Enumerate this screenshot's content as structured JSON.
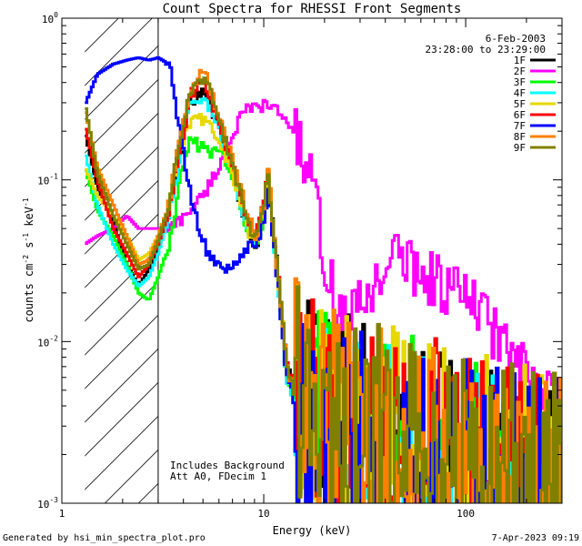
{
  "chart_data": {
    "type": "line",
    "title": "Count Spectra for RHESSI Front Segments",
    "xlabel": "Energy (keV)",
    "ylabel_base": "counts cm",
    "ylabel_sup1": "-2",
    "ylabel_mid": " s",
    "ylabel_sup2": "-1",
    "ylabel_mid2": " keV",
    "ylabel_sup3": "-1",
    "x_scale": "log",
    "y_scale": "log",
    "xlim": [
      1,
      300
    ],
    "ylim": [
      0.001,
      1
    ],
    "x_ticks": [
      {
        "value": 1,
        "label": "1"
      },
      {
        "value": 10,
        "label": "10"
      },
      {
        "value": 100,
        "label": "100"
      }
    ],
    "y_ticks": [
      {
        "value": 1,
        "base": "10",
        "exp": "0"
      },
      {
        "value": 0.1,
        "base": "10",
        "exp": "-1"
      },
      {
        "value": 0.01,
        "base": "10",
        "exp": "-2"
      },
      {
        "value": 0.001,
        "base": "10",
        "exp": "-3"
      }
    ],
    "hatched_region_kev": [
      1.3,
      3
    ],
    "legend_position": "top-right",
    "date": "6-Feb-2003",
    "time_range": "23:28:00 to 23:29:00",
    "annotations": [
      "Includes Background",
      "Att A0, FDecim 1"
    ],
    "series": [
      {
        "name": "1F",
        "color": "#000000",
        "points": [
          [
            1.3,
            0.2
          ],
          [
            1.5,
            0.09
          ],
          [
            1.8,
            0.055
          ],
          [
            2.1,
            0.03
          ],
          [
            2.4,
            0.022
          ],
          [
            2.7,
            0.028
          ],
          [
            3.0,
            0.038
          ],
          [
            3.4,
            0.06
          ],
          [
            3.8,
            0.13
          ],
          [
            4.3,
            0.3
          ],
          [
            4.8,
            0.35
          ],
          [
            5.3,
            0.33
          ],
          [
            6.0,
            0.2
          ],
          [
            6.8,
            0.14
          ],
          [
            7.5,
            0.08
          ],
          [
            8.3,
            0.05
          ],
          [
            9.2,
            0.04
          ],
          [
            10.0,
            0.06
          ],
          [
            10.5,
            0.11
          ],
          [
            11.0,
            0.06
          ],
          [
            12.0,
            0.02
          ],
          [
            13.0,
            0.007
          ],
          [
            15.0,
            0.004
          ],
          [
            20.0,
            0.003
          ],
          [
            30.0,
            0.0025
          ],
          [
            50.0,
            0.002
          ],
          [
            80.0,
            0.0017
          ],
          [
            120.0,
            0.0015
          ],
          [
            200.0,
            0.0013
          ],
          [
            300.0,
            0.0012
          ]
        ]
      },
      {
        "name": "2F",
        "color": "#ff00ff",
        "points": [
          [
            1.3,
            0.04
          ],
          [
            1.5,
            0.045
          ],
          [
            1.8,
            0.05
          ],
          [
            2.1,
            0.06
          ],
          [
            2.4,
            0.05
          ],
          [
            2.7,
            0.05
          ],
          [
            3.0,
            0.05
          ],
          [
            3.4,
            0.05
          ],
          [
            3.8,
            0.055
          ],
          [
            4.3,
            0.065
          ],
          [
            4.8,
            0.075
          ],
          [
            5.3,
            0.09
          ],
          [
            6.0,
            0.12
          ],
          [
            6.8,
            0.17
          ],
          [
            7.5,
            0.23
          ],
          [
            8.3,
            0.27
          ],
          [
            9.2,
            0.28
          ],
          [
            10.0,
            0.29
          ],
          [
            11.0,
            0.28
          ],
          [
            12.0,
            0.26
          ],
          [
            13.5,
            0.22
          ],
          [
            15.0,
            0.17
          ],
          [
            17.0,
            0.1
          ],
          [
            19.0,
            0.05
          ],
          [
            21.0,
            0.025
          ],
          [
            23.0,
            0.016
          ],
          [
            26.0,
            0.014
          ],
          [
            30.0,
            0.016
          ],
          [
            35.0,
            0.022
          ],
          [
            40.0,
            0.03
          ],
          [
            45.0,
            0.034
          ],
          [
            50.0,
            0.032
          ],
          [
            60.0,
            0.027
          ],
          [
            70.0,
            0.024
          ],
          [
            80.0,
            0.022
          ],
          [
            100.0,
            0.019
          ],
          [
            130.0,
            0.013
          ],
          [
            160.0,
            0.009
          ],
          [
            200.0,
            0.006
          ],
          [
            250.0,
            0.0045
          ],
          [
            300.0,
            0.0035
          ]
        ]
      },
      {
        "name": "3F",
        "color": "#00ff00",
        "points": [
          [
            1.3,
            0.12
          ],
          [
            1.5,
            0.065
          ],
          [
            1.8,
            0.045
          ],
          [
            2.1,
            0.03
          ],
          [
            2.4,
            0.02
          ],
          [
            2.7,
            0.018
          ],
          [
            3.0,
            0.025
          ],
          [
            3.4,
            0.04
          ],
          [
            3.8,
            0.09
          ],
          [
            4.3,
            0.18
          ],
          [
            4.8,
            0.16
          ],
          [
            5.3,
            0.15
          ],
          [
            6.0,
            0.15
          ],
          [
            6.8,
            0.12
          ],
          [
            7.5,
            0.08
          ],
          [
            8.3,
            0.05
          ],
          [
            9.2,
            0.04
          ],
          [
            10.0,
            0.06
          ],
          [
            10.5,
            0.12
          ],
          [
            11.0,
            0.05
          ],
          [
            12.0,
            0.018
          ],
          [
            13.0,
            0.006
          ],
          [
            15.0,
            0.0035
          ],
          [
            20.0,
            0.0028
          ],
          [
            30.0,
            0.0023
          ],
          [
            50.0,
            0.002
          ],
          [
            80.0,
            0.0017
          ],
          [
            120.0,
            0.0014
          ],
          [
            200.0,
            0.0012
          ],
          [
            300.0,
            0.0011
          ]
        ]
      },
      {
        "name": "4F",
        "color": "#00ffff",
        "points": [
          [
            1.3,
            0.15
          ],
          [
            1.5,
            0.07
          ],
          [
            1.8,
            0.04
          ],
          [
            2.1,
            0.028
          ],
          [
            2.4,
            0.022
          ],
          [
            2.7,
            0.025
          ],
          [
            3.0,
            0.035
          ],
          [
            3.4,
            0.06
          ],
          [
            3.8,
            0.12
          ],
          [
            4.3,
            0.28
          ],
          [
            4.8,
            0.32
          ],
          [
            5.3,
            0.3
          ],
          [
            6.0,
            0.2
          ],
          [
            6.8,
            0.13
          ],
          [
            7.5,
            0.08
          ],
          [
            8.3,
            0.05
          ],
          [
            9.2,
            0.04
          ],
          [
            10.0,
            0.06
          ],
          [
            10.5,
            0.1
          ],
          [
            11.0,
            0.05
          ],
          [
            12.0,
            0.018
          ],
          [
            13.0,
            0.006
          ],
          [
            15.0,
            0.0035
          ],
          [
            20.0,
            0.0027
          ],
          [
            30.0,
            0.0022
          ],
          [
            50.0,
            0.0019
          ],
          [
            80.0,
            0.0016
          ],
          [
            120.0,
            0.0014
          ],
          [
            200.0,
            0.0012
          ],
          [
            300.0,
            0.0011
          ]
        ]
      },
      {
        "name": "5F",
        "color": "#e6d800",
        "points": [
          [
            1.3,
            0.12
          ],
          [
            1.5,
            0.08
          ],
          [
            1.8,
            0.06
          ],
          [
            2.1,
            0.045
          ],
          [
            2.4,
            0.032
          ],
          [
            2.7,
            0.035
          ],
          [
            3.0,
            0.045
          ],
          [
            3.4,
            0.07
          ],
          [
            3.8,
            0.15
          ],
          [
            4.3,
            0.22
          ],
          [
            4.8,
            0.24
          ],
          [
            5.3,
            0.23
          ],
          [
            6.0,
            0.18
          ],
          [
            6.8,
            0.12
          ],
          [
            7.5,
            0.08
          ],
          [
            8.3,
            0.05
          ],
          [
            9.2,
            0.04
          ],
          [
            10.0,
            0.06
          ],
          [
            10.5,
            0.11
          ],
          [
            11.0,
            0.06
          ],
          [
            12.0,
            0.02
          ],
          [
            13.0,
            0.007
          ],
          [
            15.0,
            0.004
          ],
          [
            20.0,
            0.003
          ],
          [
            30.0,
            0.0025
          ],
          [
            50.0,
            0.0021
          ],
          [
            80.0,
            0.0018
          ],
          [
            120.0,
            0.0015
          ],
          [
            200.0,
            0.0013
          ],
          [
            300.0,
            0.0012
          ]
        ]
      },
      {
        "name": "6F",
        "color": "#ff0000",
        "points": [
          [
            1.3,
            0.22
          ],
          [
            1.5,
            0.1
          ],
          [
            1.8,
            0.05
          ],
          [
            2.1,
            0.035
          ],
          [
            2.4,
            0.025
          ],
          [
            2.7,
            0.03
          ],
          [
            3.0,
            0.04
          ],
          [
            3.4,
            0.065
          ],
          [
            3.8,
            0.14
          ],
          [
            4.3,
            0.32
          ],
          [
            4.8,
            0.4
          ],
          [
            5.3,
            0.36
          ],
          [
            6.0,
            0.22
          ],
          [
            6.8,
            0.14
          ],
          [
            7.5,
            0.09
          ],
          [
            8.3,
            0.055
          ],
          [
            9.2,
            0.045
          ],
          [
            10.0,
            0.07
          ],
          [
            10.5,
            0.12
          ],
          [
            11.0,
            0.06
          ],
          [
            12.0,
            0.02
          ],
          [
            13.0,
            0.007
          ],
          [
            15.0,
            0.004
          ],
          [
            20.0,
            0.003
          ],
          [
            30.0,
            0.0025
          ],
          [
            50.0,
            0.0021
          ],
          [
            80.0,
            0.0018
          ],
          [
            120.0,
            0.0015
          ],
          [
            200.0,
            0.0013
          ],
          [
            300.0,
            0.0012
          ]
        ]
      },
      {
        "name": "7F",
        "color": "#0000ff",
        "points": [
          [
            1.3,
            0.29
          ],
          [
            1.5,
            0.45
          ],
          [
            1.8,
            0.52
          ],
          [
            2.1,
            0.55
          ],
          [
            2.4,
            0.57
          ],
          [
            2.7,
            0.55
          ],
          [
            3.0,
            0.57
          ],
          [
            3.4,
            0.52
          ],
          [
            3.8,
            0.22
          ],
          [
            4.3,
            0.085
          ],
          [
            4.8,
            0.05
          ],
          [
            5.3,
            0.035
          ],
          [
            6.0,
            0.028
          ],
          [
            6.8,
            0.03
          ],
          [
            7.5,
            0.032
          ],
          [
            8.3,
            0.038
          ],
          [
            9.2,
            0.04
          ],
          [
            10.0,
            0.055
          ],
          [
            10.5,
            0.09
          ],
          [
            11.0,
            0.05
          ],
          [
            12.0,
            0.018
          ],
          [
            13.0,
            0.006
          ],
          [
            15.0,
            0.0035
          ],
          [
            20.0,
            0.0027
          ],
          [
            30.0,
            0.0022
          ],
          [
            50.0,
            0.0019
          ],
          [
            80.0,
            0.0016
          ],
          [
            120.0,
            0.0014
          ],
          [
            200.0,
            0.0012
          ],
          [
            300.0,
            0.0011
          ]
        ]
      },
      {
        "name": "8F",
        "color": "#ff8000",
        "points": [
          [
            1.3,
            0.28
          ],
          [
            1.5,
            0.12
          ],
          [
            1.8,
            0.07
          ],
          [
            2.1,
            0.045
          ],
          [
            2.4,
            0.03
          ],
          [
            2.7,
            0.032
          ],
          [
            3.0,
            0.045
          ],
          [
            3.4,
            0.07
          ],
          [
            3.8,
            0.17
          ],
          [
            4.3,
            0.35
          ],
          [
            4.8,
            0.45
          ],
          [
            5.3,
            0.42
          ],
          [
            6.0,
            0.25
          ],
          [
            6.8,
            0.15
          ],
          [
            7.5,
            0.1
          ],
          [
            8.3,
            0.06
          ],
          [
            9.2,
            0.045
          ],
          [
            10.0,
            0.07
          ],
          [
            10.5,
            0.12
          ],
          [
            11.0,
            0.06
          ],
          [
            12.0,
            0.02
          ],
          [
            13.0,
            0.007
          ],
          [
            15.0,
            0.004
          ],
          [
            20.0,
            0.003
          ],
          [
            30.0,
            0.0025
          ],
          [
            50.0,
            0.0021
          ],
          [
            80.0,
            0.0018
          ],
          [
            120.0,
            0.0015
          ],
          [
            200.0,
            0.0013
          ],
          [
            300.0,
            0.0012
          ]
        ]
      },
      {
        "name": "9F",
        "color": "#808000",
        "points": [
          [
            1.3,
            0.3
          ],
          [
            1.5,
            0.11
          ],
          [
            1.8,
            0.06
          ],
          [
            2.1,
            0.04
          ],
          [
            2.4,
            0.028
          ],
          [
            2.7,
            0.03
          ],
          [
            3.0,
            0.042
          ],
          [
            3.4,
            0.07
          ],
          [
            3.8,
            0.16
          ],
          [
            4.3,
            0.33
          ],
          [
            4.8,
            0.42
          ],
          [
            5.3,
            0.38
          ],
          [
            6.0,
            0.23
          ],
          [
            6.8,
            0.14
          ],
          [
            7.5,
            0.09
          ],
          [
            8.3,
            0.055
          ],
          [
            9.2,
            0.043
          ],
          [
            10.0,
            0.065
          ],
          [
            10.5,
            0.11
          ],
          [
            11.0,
            0.06
          ],
          [
            12.0,
            0.02
          ],
          [
            13.0,
            0.007
          ],
          [
            15.0,
            0.004
          ],
          [
            20.0,
            0.003
          ],
          [
            30.0,
            0.0025
          ],
          [
            50.0,
            0.0021
          ],
          [
            80.0,
            0.0018
          ],
          [
            120.0,
            0.0015
          ],
          [
            200.0,
            0.0013
          ],
          [
            300.0,
            0.0012
          ]
        ]
      }
    ]
  },
  "footer": {
    "generated_by": "Generated by hsi_min_spectra_plot.pro",
    "timestamp": "7-Apr-2023 09:19"
  }
}
